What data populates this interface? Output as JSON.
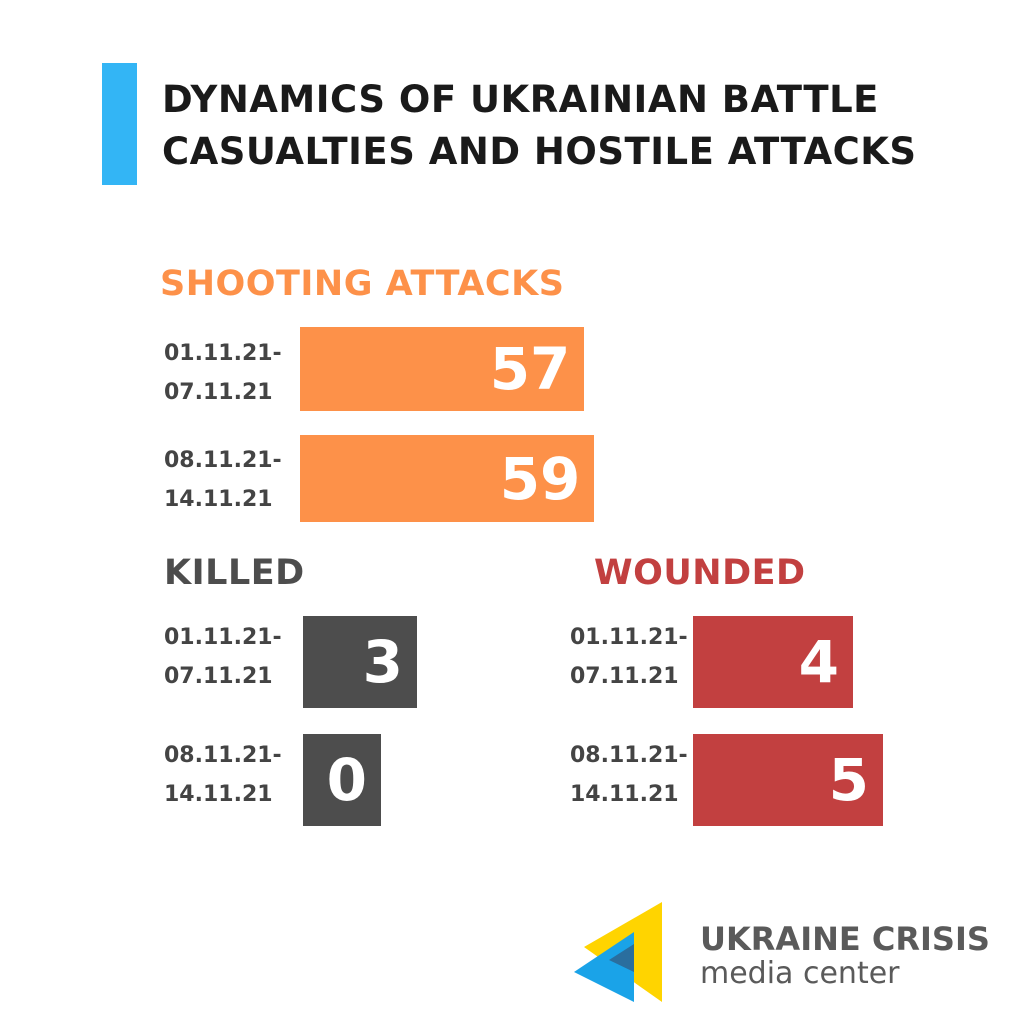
{
  "title_line1": "DYNAMICS OF UKRAINIAN BATTLE",
  "title_line2": "CASUALTIES AND HOSTILE ATTACKS",
  "colors": {
    "accent": "#33b5f5",
    "shooting": "#fd9149",
    "killed": "#4d4d4d",
    "wounded": "#c24040",
    "title": "#1a1a1a",
    "label": "#444444"
  },
  "logo": {
    "line1": "UKRAINE CRISIS",
    "line2": "media center",
    "icon": "ukraine-crisis-triangles-icon"
  },
  "chart_data": [
    {
      "type": "bar",
      "title": "SHOOTING  ATTACKS",
      "categories": [
        "01.11.21-\n07.11.21",
        "08.11.21-\n14.11.21"
      ],
      "category_lines": [
        [
          "01.11.21-",
          "07.11.21"
        ],
        [
          "08.11.21-",
          "14.11.21"
        ]
      ],
      "values": [
        57,
        59
      ],
      "orientation": "horizontal"
    },
    {
      "type": "bar",
      "title": "KILLED",
      "categories": [
        "01.11.21-\n07.11.21",
        "08.11.21-\n14.11.21"
      ],
      "category_lines": [
        [
          "01.11.21-",
          "07.11.21"
        ],
        [
          "08.11.21-",
          "14.11.21"
        ]
      ],
      "values": [
        3,
        0
      ],
      "orientation": "horizontal"
    },
    {
      "type": "bar",
      "title": "WOUNDED",
      "categories": [
        "01.11.21-\n07.11.21",
        "08.11.21-\n14.11.21"
      ],
      "category_lines": [
        [
          "01.11.21-",
          "07.11.21"
        ],
        [
          "08.11.21-",
          "14.11.21"
        ]
      ],
      "values": [
        4,
        5
      ],
      "orientation": "horizontal"
    }
  ]
}
